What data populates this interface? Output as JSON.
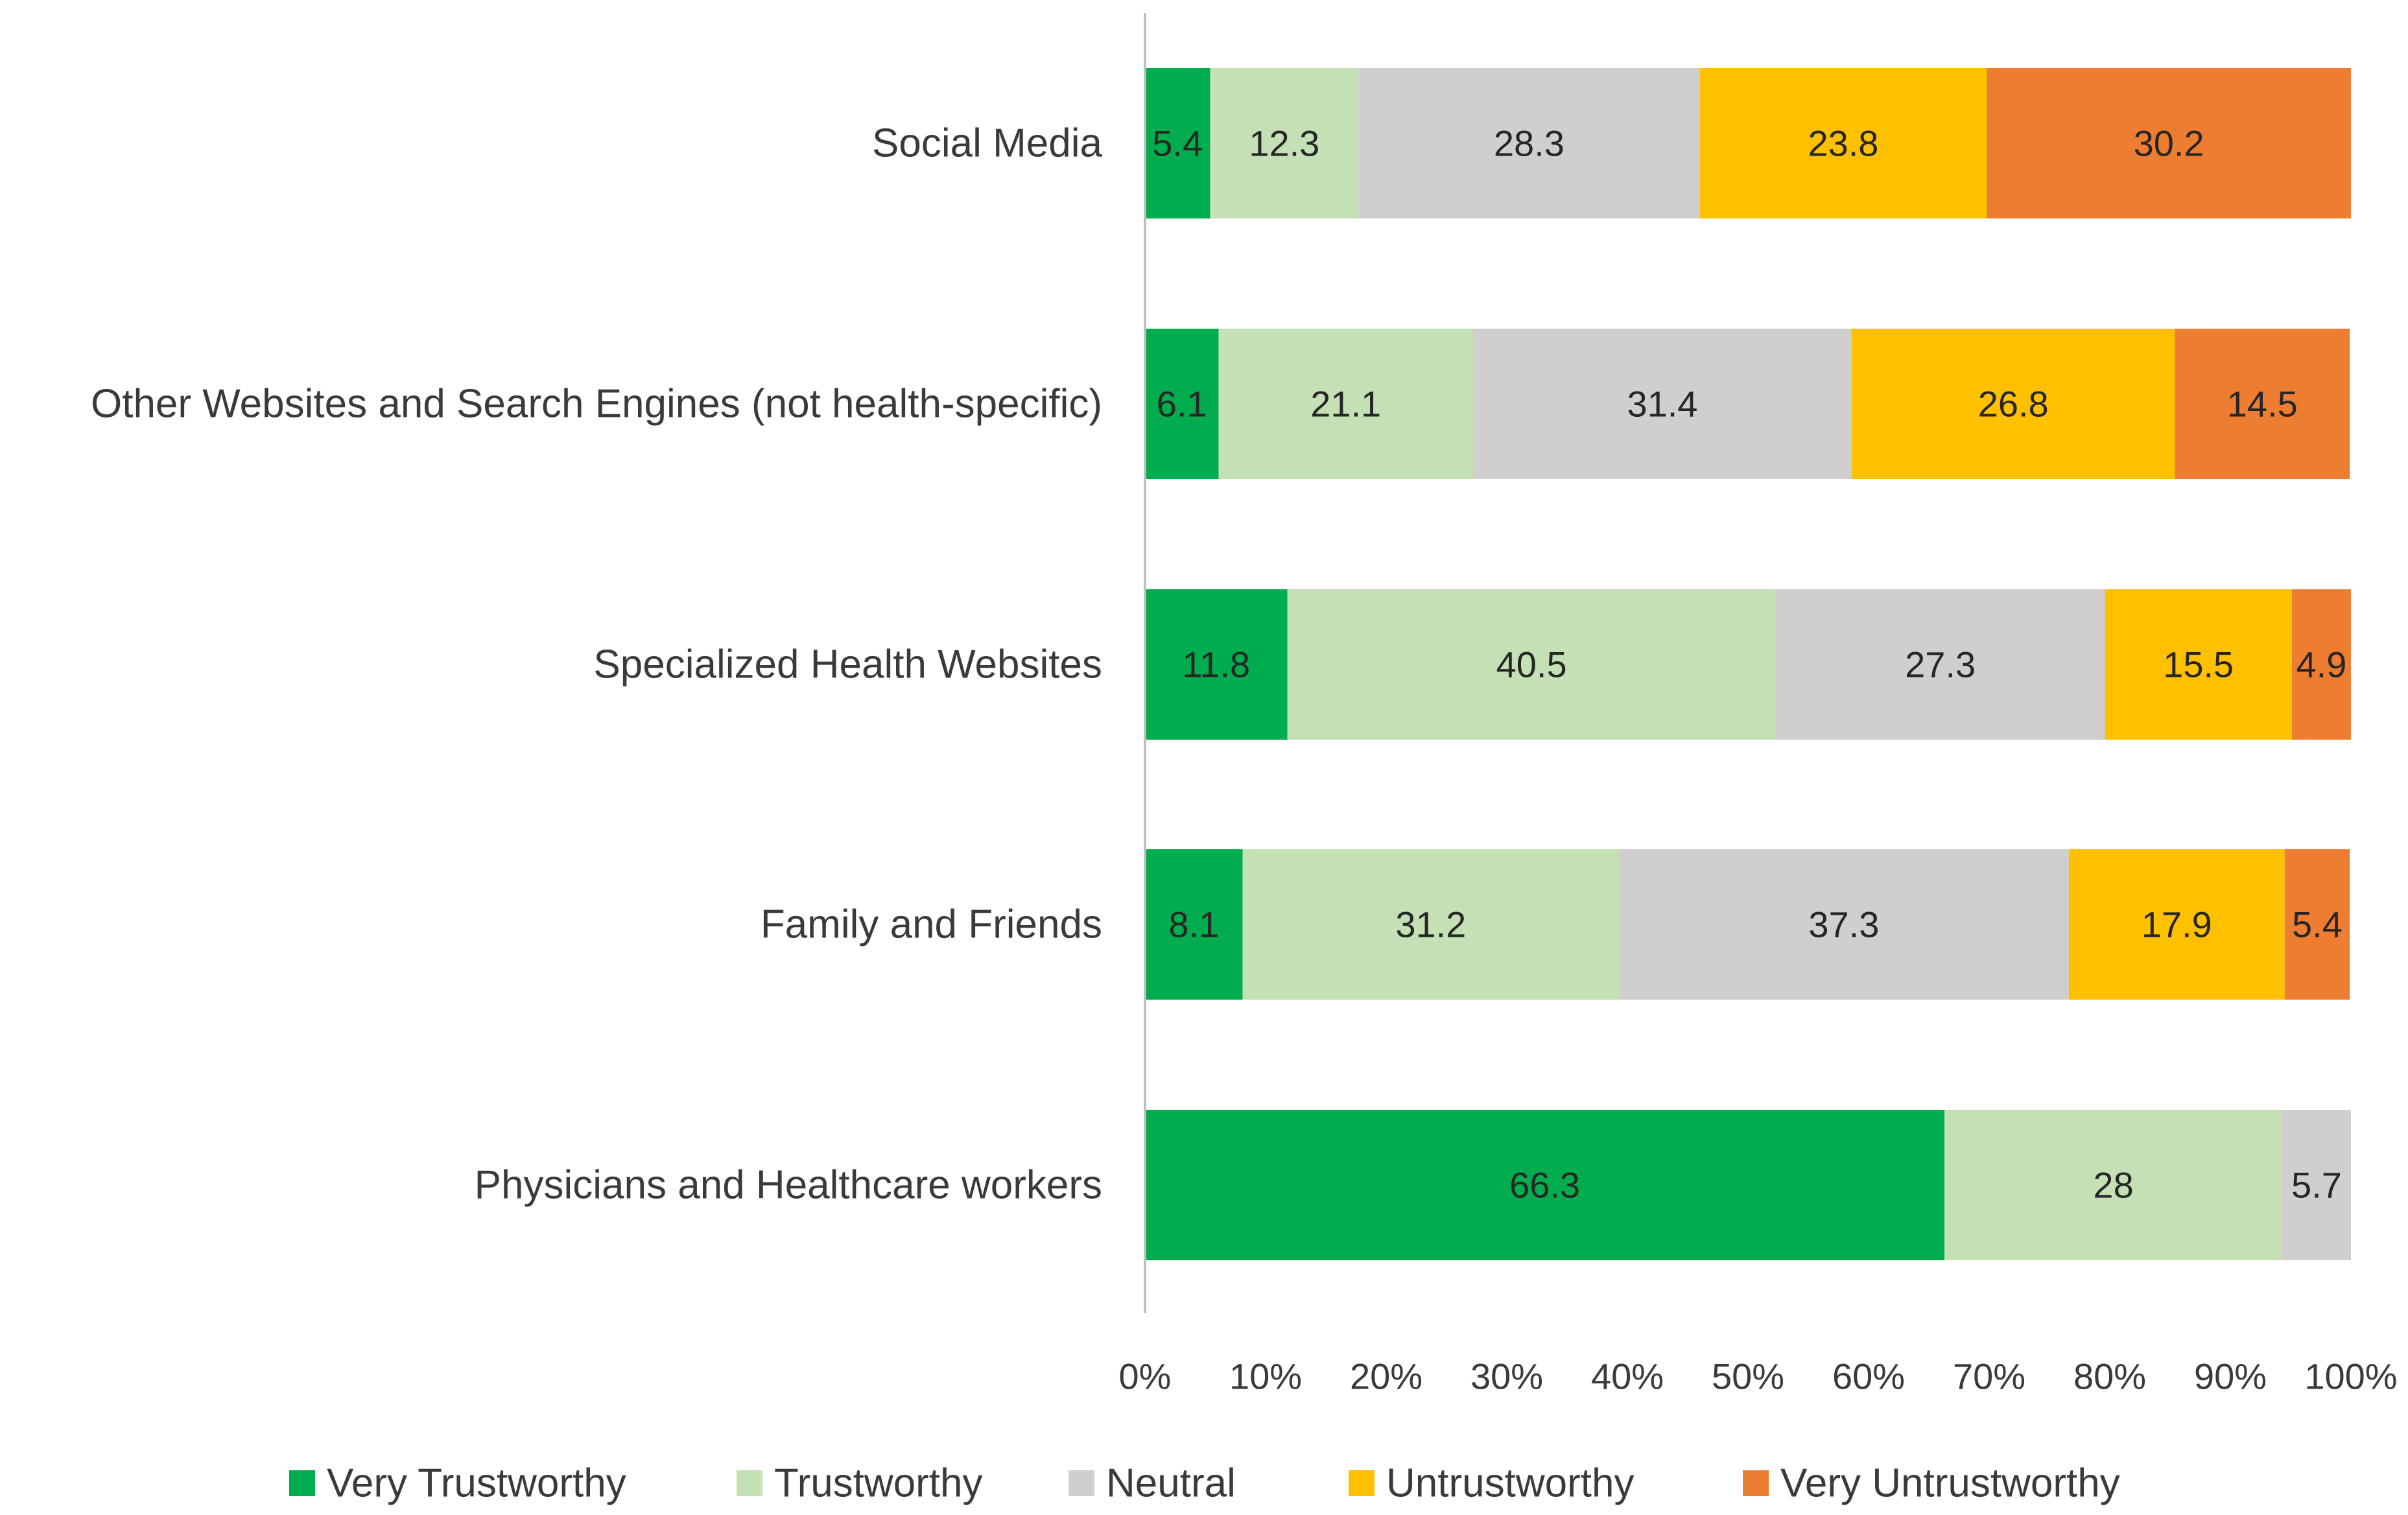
{
  "chart_data": {
    "type": "bar",
    "orientation": "horizontal",
    "stacked": "percent",
    "categories": [
      "Social Media",
      "Other Websites and Search Engines (not health-specific)",
      "Specialized Health Websites",
      "Family and Friends",
      "Physicians and Healthcare workers"
    ],
    "series": [
      {
        "name": "Very Trustworthy",
        "color": "#00AD4E",
        "values": [
          5.4,
          6.1,
          11.8,
          8.1,
          66.3
        ],
        "labels": [
          "5.4",
          "6.1",
          "11.8",
          "8.1",
          "66.3"
        ]
      },
      {
        "name": "Trustworthy",
        "color": "#C5E0B4",
        "values": [
          12.3,
          21.1,
          40.5,
          31.2,
          28
        ],
        "labels": [
          "12.3",
          "21.1",
          "40.5",
          "31.2",
          "28"
        ]
      },
      {
        "name": "Neutral",
        "color": "#D0CECE",
        "values": [
          28.3,
          31.4,
          27.3,
          37.3,
          5.7
        ],
        "labels": [
          "28.3",
          "31.4",
          "27.3",
          "37.3",
          "5.7"
        ]
      },
      {
        "name": "Untrustworthy",
        "color": "#FFC000",
        "values": [
          23.8,
          26.8,
          15.5,
          17.9,
          0
        ],
        "labels": [
          "23.8",
          "26.8",
          "15.5",
          "17.9",
          ""
        ]
      },
      {
        "name": "Very Untrustworthy",
        "color": "#ED7D31",
        "values": [
          30.2,
          14.5,
          4.9,
          5.4,
          0
        ],
        "labels": [
          "30.2",
          "14.5",
          "4.9",
          "5.4",
          ""
        ]
      }
    ],
    "x_ticks": [
      "0%",
      "10%",
      "20%",
      "30%",
      "40%",
      "50%",
      "60%",
      "70%",
      "80%",
      "90%",
      "100%"
    ],
    "xlim": [
      0,
      100
    ],
    "title": "",
    "xlabel": "",
    "ylabel": "",
    "grid": false,
    "legend_position": "bottom"
  }
}
